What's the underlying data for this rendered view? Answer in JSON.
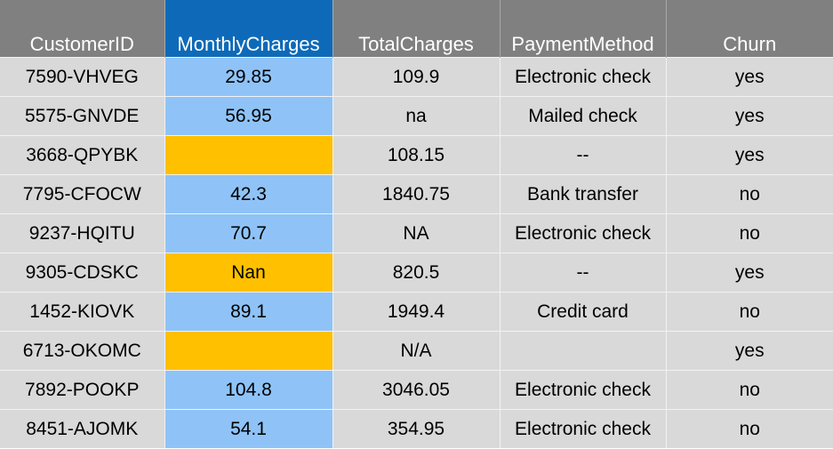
{
  "table": {
    "headers": [
      "CustomerID",
      "MonthlyCharges",
      "TotalCharges",
      "PaymentMethod",
      "Churn"
    ],
    "highlighted_column": 1,
    "colors": {
      "header_bg": "#808080",
      "highlight_header_bg": "#0e6ab8",
      "cell_bg": "#d9d9d9",
      "valid_value_bg": "#8fc3f7",
      "missing_value_bg": "#ffc000"
    },
    "rows": [
      {
        "cells": [
          "7590-VHVEG",
          "29.85",
          "109.9",
          "Electronic check",
          "yes"
        ],
        "monthly_status": "valid"
      },
      {
        "cells": [
          "5575-GNVDE",
          "56.95",
          "na",
          "Mailed check",
          "yes"
        ],
        "monthly_status": "valid"
      },
      {
        "cells": [
          "3668-QPYBK",
          "",
          "108.15",
          "--",
          "yes"
        ],
        "monthly_status": "missing"
      },
      {
        "cells": [
          "7795-CFOCW",
          "42.3",
          "1840.75",
          "Bank transfer",
          "no"
        ],
        "monthly_status": "valid"
      },
      {
        "cells": [
          "9237-HQITU",
          "70.7",
          "NA",
          "Electronic check",
          "no"
        ],
        "monthly_status": "valid"
      },
      {
        "cells": [
          "9305-CDSKC",
          "Nan",
          "820.5",
          "--",
          "yes"
        ],
        "monthly_status": "missing"
      },
      {
        "cells": [
          "1452-KIOVK",
          "89.1",
          "1949.4",
          "Credit card",
          "no"
        ],
        "monthly_status": "valid"
      },
      {
        "cells": [
          "6713-OKOMC",
          "",
          "N/A",
          "",
          "yes"
        ],
        "monthly_status": "missing"
      },
      {
        "cells": [
          "7892-POOKP",
          "104.8",
          "3046.05",
          "Electronic check",
          "no"
        ],
        "monthly_status": "valid"
      },
      {
        "cells": [
          "8451-AJOMK",
          "54.1",
          "354.95",
          "Electronic check",
          "no"
        ],
        "monthly_status": "valid"
      }
    ]
  }
}
